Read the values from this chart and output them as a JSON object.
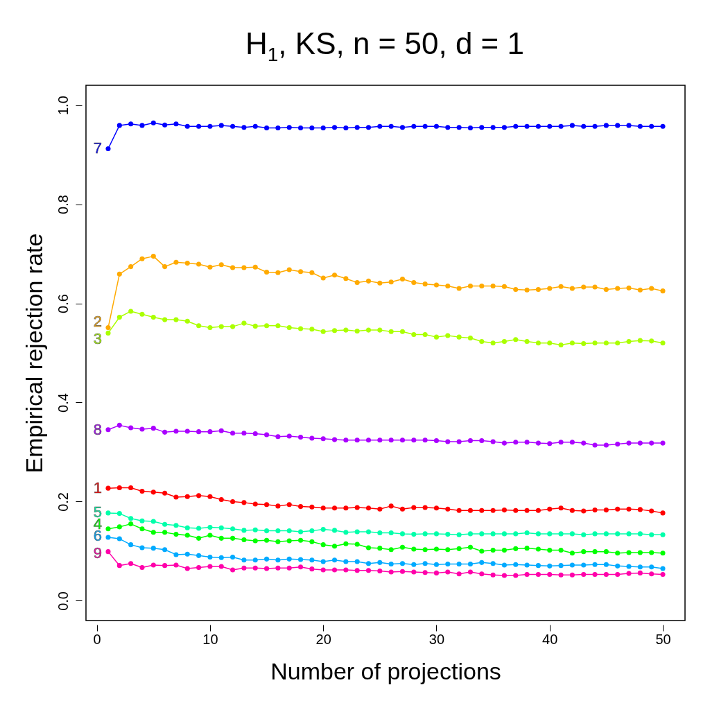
{
  "chart_data": {
    "type": "line",
    "title": "H$_{1}$, KS, n = 50, d = 1",
    "xlabel": "Number of projections",
    "ylabel": "Empirical rejection rate",
    "x": [
      1,
      2,
      3,
      4,
      5,
      6,
      7,
      8,
      9,
      10,
      11,
      12,
      13,
      14,
      15,
      16,
      17,
      18,
      19,
      20,
      21,
      22,
      23,
      24,
      25,
      26,
      27,
      28,
      29,
      30,
      31,
      32,
      33,
      34,
      35,
      36,
      37,
      38,
      39,
      40,
      41,
      42,
      43,
      44,
      45,
      46,
      47,
      48,
      49,
      50
    ],
    "xlim": [
      -0.96,
      51.96
    ],
    "xticks": [
      0,
      10,
      20,
      30,
      40,
      50
    ],
    "ylim": [
      -0.04,
      1.04
    ],
    "yticks": [
      {
        "value": 0,
        "label": "0.0"
      },
      {
        "value": 0.2,
        "label": "0.2"
      },
      {
        "value": 0.4,
        "label": "0.4"
      },
      {
        "value": 0.6,
        "label": "0.6"
      },
      {
        "value": 0.8,
        "label": "0.8"
      },
      {
        "value": 1,
        "label": "1.0"
      }
    ],
    "grid": false,
    "legend": false,
    "marker": "circle",
    "line_style": "solid",
    "series": [
      {
        "name": "1",
        "color": "#ff0000",
        "values": [
          0.227,
          0.228,
          0.228,
          0.221,
          0.219,
          0.217,
          0.209,
          0.21,
          0.212,
          0.21,
          0.204,
          0.2,
          0.198,
          0.195,
          0.194,
          0.191,
          0.194,
          0.19,
          0.189,
          0.187,
          0.187,
          0.187,
          0.188,
          0.187,
          0.185,
          0.191,
          0.185,
          0.188,
          0.188,
          0.187,
          0.185,
          0.182,
          0.182,
          0.182,
          0.182,
          0.183,
          0.182,
          0.182,
          0.182,
          0.185,
          0.187,
          0.182,
          0.181,
          0.183,
          0.183,
          0.185,
          0.185,
          0.184,
          0.181,
          0.177
        ]
      },
      {
        "name": "2",
        "color": "#ffaa00",
        "values": [
          0.551,
          0.659,
          0.674,
          0.69,
          0.695,
          0.674,
          0.683,
          0.681,
          0.679,
          0.673,
          0.678,
          0.672,
          0.672,
          0.673,
          0.663,
          0.662,
          0.668,
          0.664,
          0.662,
          0.651,
          0.657,
          0.65,
          0.642,
          0.645,
          0.641,
          0.643,
          0.649,
          0.642,
          0.639,
          0.637,
          0.635,
          0.63,
          0.635,
          0.635,
          0.635,
          0.634,
          0.628,
          0.627,
          0.628,
          0.63,
          0.634,
          0.63,
          0.633,
          0.633,
          0.628,
          0.63,
          0.631,
          0.627,
          0.63,
          0.625
        ]
      },
      {
        "name": "3",
        "color": "#aaff00",
        "values": [
          0.54,
          0.572,
          0.584,
          0.578,
          0.572,
          0.567,
          0.567,
          0.564,
          0.555,
          0.551,
          0.553,
          0.553,
          0.56,
          0.554,
          0.555,
          0.555,
          0.551,
          0.549,
          0.548,
          0.543,
          0.545,
          0.546,
          0.544,
          0.546,
          0.546,
          0.543,
          0.543,
          0.537,
          0.537,
          0.532,
          0.535,
          0.532,
          0.53,
          0.523,
          0.52,
          0.523,
          0.527,
          0.523,
          0.52,
          0.52,
          0.516,
          0.52,
          0.519,
          0.52,
          0.52,
          0.52,
          0.523,
          0.525,
          0.524,
          0.52
        ]
      },
      {
        "name": "4",
        "color": "#00ff00",
        "values": [
          0.145,
          0.149,
          0.155,
          0.145,
          0.138,
          0.138,
          0.134,
          0.132,
          0.126,
          0.132,
          0.126,
          0.126,
          0.123,
          0.121,
          0.122,
          0.119,
          0.121,
          0.122,
          0.119,
          0.113,
          0.11,
          0.115,
          0.114,
          0.107,
          0.106,
          0.103,
          0.108,
          0.104,
          0.103,
          0.104,
          0.103,
          0.105,
          0.108,
          0.1,
          0.102,
          0.102,
          0.105,
          0.106,
          0.104,
          0.102,
          0.102,
          0.096,
          0.099,
          0.099,
          0.099,
          0.096,
          0.097,
          0.097,
          0.097,
          0.096
        ]
      },
      {
        "name": "5",
        "color": "#00ffaa",
        "values": [
          0.177,
          0.176,
          0.166,
          0.161,
          0.16,
          0.154,
          0.152,
          0.147,
          0.146,
          0.148,
          0.147,
          0.145,
          0.142,
          0.143,
          0.141,
          0.141,
          0.141,
          0.139,
          0.141,
          0.144,
          0.142,
          0.138,
          0.139,
          0.139,
          0.137,
          0.137,
          0.135,
          0.134,
          0.135,
          0.135,
          0.134,
          0.133,
          0.135,
          0.135,
          0.135,
          0.135,
          0.135,
          0.137,
          0.135,
          0.135,
          0.135,
          0.135,
          0.133,
          0.135,
          0.135,
          0.135,
          0.135,
          0.135,
          0.133,
          0.133
        ]
      },
      {
        "name": "6",
        "color": "#00aaff",
        "values": [
          0.128,
          0.125,
          0.113,
          0.107,
          0.106,
          0.103,
          0.093,
          0.094,
          0.091,
          0.088,
          0.087,
          0.088,
          0.082,
          0.082,
          0.084,
          0.082,
          0.084,
          0.083,
          0.082,
          0.079,
          0.082,
          0.079,
          0.079,
          0.075,
          0.077,
          0.074,
          0.075,
          0.073,
          0.075,
          0.073,
          0.074,
          0.074,
          0.074,
          0.077,
          0.075,
          0.072,
          0.073,
          0.072,
          0.071,
          0.07,
          0.071,
          0.072,
          0.072,
          0.073,
          0.073,
          0.07,
          0.069,
          0.068,
          0.068,
          0.065
        ]
      },
      {
        "name": "7",
        "color": "#0000ff",
        "values": [
          0.912,
          0.959,
          0.962,
          0.959,
          0.964,
          0.96,
          0.962,
          0.957,
          0.957,
          0.957,
          0.959,
          0.957,
          0.955,
          0.957,
          0.954,
          0.954,
          0.955,
          0.954,
          0.954,
          0.954,
          0.955,
          0.954,
          0.955,
          0.955,
          0.957,
          0.957,
          0.955,
          0.957,
          0.957,
          0.957,
          0.955,
          0.955,
          0.954,
          0.955,
          0.955,
          0.955,
          0.957,
          0.957,
          0.957,
          0.957,
          0.957,
          0.959,
          0.957,
          0.957,
          0.959,
          0.959,
          0.959,
          0.957,
          0.957,
          0.957
        ]
      },
      {
        "name": "8",
        "color": "#aa00ff",
        "values": [
          0.345,
          0.354,
          0.349,
          0.346,
          0.348,
          0.34,
          0.342,
          0.342,
          0.341,
          0.341,
          0.343,
          0.338,
          0.338,
          0.337,
          0.335,
          0.331,
          0.332,
          0.33,
          0.328,
          0.327,
          0.325,
          0.324,
          0.324,
          0.324,
          0.324,
          0.324,
          0.324,
          0.324,
          0.324,
          0.323,
          0.321,
          0.321,
          0.323,
          0.323,
          0.321,
          0.318,
          0.32,
          0.32,
          0.318,
          0.317,
          0.32,
          0.32,
          0.318,
          0.314,
          0.314,
          0.316,
          0.318,
          0.318,
          0.318,
          0.318
        ]
      },
      {
        "name": "9",
        "color": "#ff00aa",
        "values": [
          0.099,
          0.071,
          0.075,
          0.067,
          0.072,
          0.071,
          0.072,
          0.065,
          0.067,
          0.069,
          0.069,
          0.062,
          0.066,
          0.066,
          0.065,
          0.066,
          0.066,
          0.068,
          0.064,
          0.062,
          0.062,
          0.062,
          0.061,
          0.061,
          0.06,
          0.058,
          0.059,
          0.058,
          0.057,
          0.056,
          0.058,
          0.054,
          0.058,
          0.054,
          0.052,
          0.051,
          0.051,
          0.053,
          0.053,
          0.053,
          0.052,
          0.052,
          0.053,
          0.053,
          0.053,
          0.053,
          0.055,
          0.056,
          0.054,
          0.053
        ]
      }
    ]
  }
}
